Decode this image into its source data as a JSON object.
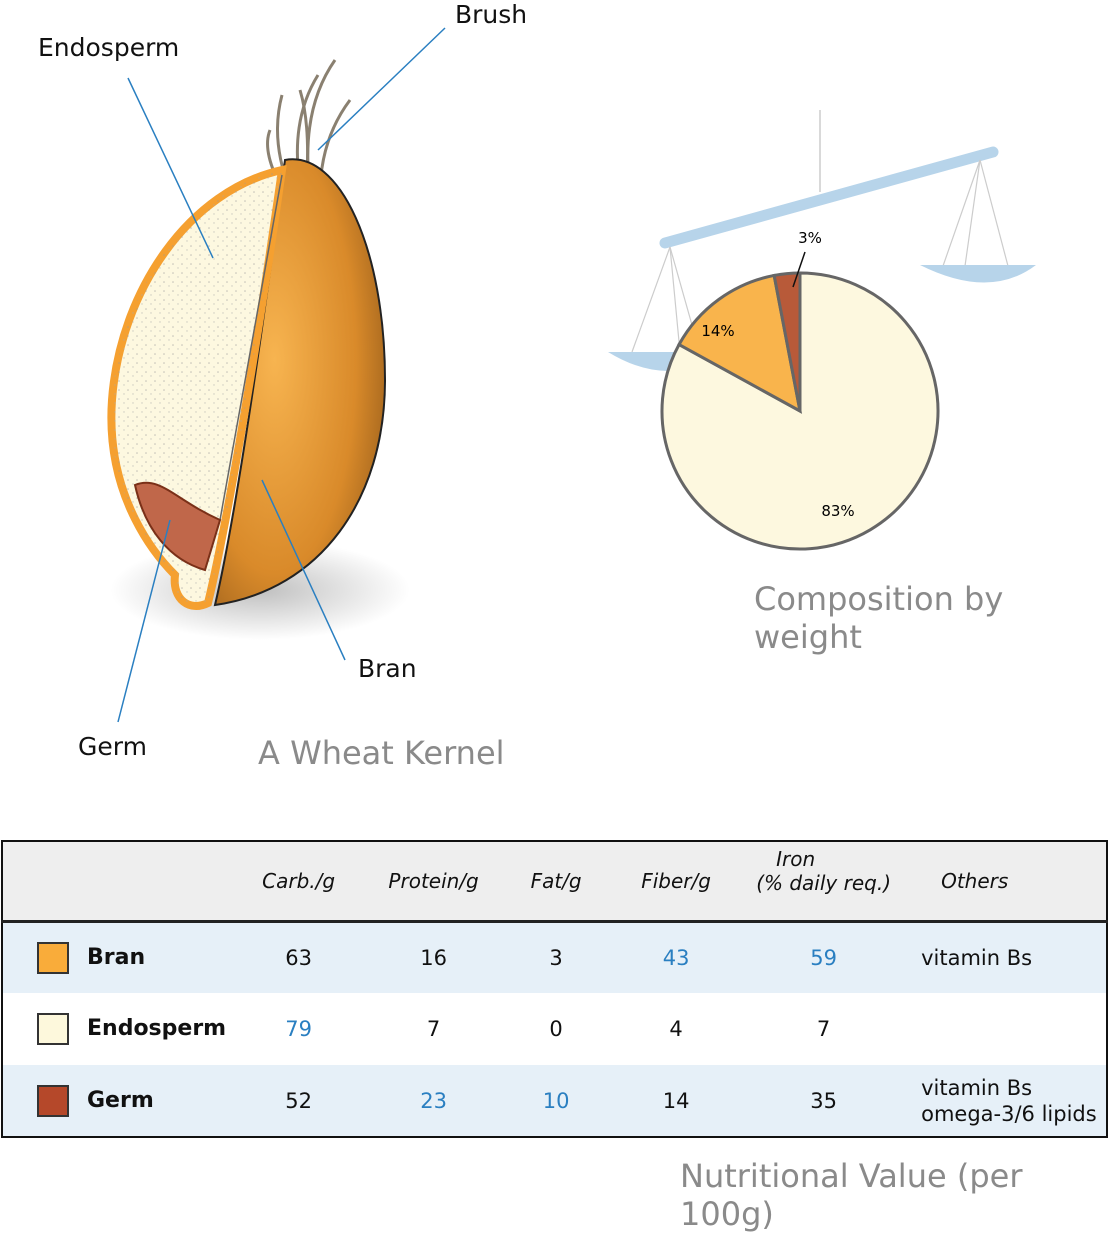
{
  "kernel": {
    "title": "A Wheat Kernel",
    "labels": {
      "brush": "Brush",
      "endosperm": "Endosperm",
      "bran": "Bran",
      "germ": "Germ"
    }
  },
  "composition": {
    "title": "Composition by weight"
  },
  "chart_data": {
    "type": "pie",
    "title": "Composition by weight",
    "categories": [
      "Endosperm",
      "Bran",
      "Germ"
    ],
    "values": [
      83,
      14,
      3
    ],
    "labels": [
      "83%",
      "14%",
      "3%"
    ],
    "colors": [
      "#fdf8df",
      "#f9b44c",
      "#b85a39"
    ]
  },
  "table": {
    "title": "Nutritional Value (per 100g)",
    "headers": [
      "",
      "Carb./g",
      "Protein/g",
      "Fat/g",
      "Fiber/g",
      "Iron",
      "(% daily req.)",
      "Others"
    ],
    "rows": [
      {
        "name": "Bran",
        "color": "#f9ac3a",
        "values": [
          "63",
          "16",
          "3",
          "43",
          "59"
        ],
        "highlight": [
          false,
          false,
          false,
          true,
          true
        ],
        "others": [
          "vitamin Bs"
        ]
      },
      {
        "name": "Endosperm",
        "color": "#fdf8dc",
        "values": [
          "79",
          "7",
          "0",
          "4",
          "7"
        ],
        "highlight": [
          true,
          false,
          false,
          false,
          false
        ],
        "others": []
      },
      {
        "name": "Germ",
        "color": "#b5482a",
        "values": [
          "52",
          "23",
          "10",
          "14",
          "35"
        ],
        "highlight": [
          false,
          true,
          true,
          false,
          false
        ],
        "others": [
          "vitamin Bs",
          "omega-3/6 lipids"
        ]
      }
    ],
    "highlight_color": "#2a7fc1"
  }
}
